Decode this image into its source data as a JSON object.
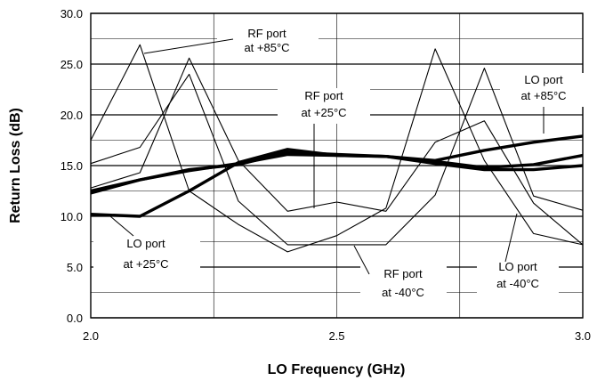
{
  "chart_data": {
    "type": "line",
    "title": "",
    "xlabel": "LO Frequency (GHz)",
    "ylabel": "Return Loss (dB)",
    "xlim": [
      2.0,
      3.0
    ],
    "ylim": [
      0.0,
      30.0
    ],
    "x_ticks": [
      "2.0",
      "2.5",
      "3.0"
    ],
    "y_ticks": [
      "0.0",
      "5.0",
      "10.0",
      "15.0",
      "20.0",
      "25.0",
      "30.0"
    ],
    "grid": true,
    "x": [
      2.0,
      2.1,
      2.2,
      2.3,
      2.4,
      2.5,
      2.6,
      2.7,
      2.8,
      2.9,
      3.0
    ],
    "series": [
      {
        "name": "RF port at +85°C",
        "weight": "thin",
        "values": [
          17.5,
          26.9,
          12.5,
          9.2,
          6.5,
          8.1,
          10.8,
          26.5,
          15.5,
          8.3,
          7.2
        ]
      },
      {
        "name": "RF port at +25°C",
        "weight": "thin",
        "values": [
          12.8,
          14.3,
          25.6,
          15.5,
          10.5,
          11.4,
          10.5,
          17.3,
          19.4,
          11.3,
          7.2
        ]
      },
      {
        "name": "RF port at -40°C",
        "weight": "thin",
        "values": [
          15.2,
          16.8,
          24.0,
          11.5,
          7.2,
          7.2,
          7.2,
          12.1,
          24.6,
          12.0,
          10.6
        ]
      },
      {
        "name": "LO port at +85°C",
        "weight": "thick",
        "values": [
          12.3,
          13.6,
          14.6,
          15.1,
          16.3,
          16.1,
          15.9,
          15.5,
          16.5,
          17.3,
          17.9
        ]
      },
      {
        "name": "LO port at +25°C",
        "weight": "thick",
        "values": [
          10.2,
          10.0,
          12.5,
          15.3,
          16.6,
          16.0,
          15.9,
          15.2,
          14.6,
          14.6,
          15.0
        ]
      },
      {
        "name": "LO port at -40°C",
        "weight": "thick",
        "values": [
          12.5,
          13.6,
          14.5,
          15.2,
          16.1,
          16.0,
          15.9,
          15.4,
          14.8,
          15.1,
          16.0
        ]
      }
    ],
    "annotations": [
      {
        "lines": [
          "RF port",
          "at +85°C"
        ]
      },
      {
        "lines": [
          "RF port",
          "at +25°C"
        ]
      },
      {
        "lines": [
          "LO port",
          "at +85°C"
        ]
      },
      {
        "lines": [
          "LO port",
          "at +25°C"
        ]
      },
      {
        "lines": [
          "RF port",
          "at -40°C"
        ]
      },
      {
        "lines": [
          "LO port",
          "at -40°C"
        ]
      }
    ]
  }
}
